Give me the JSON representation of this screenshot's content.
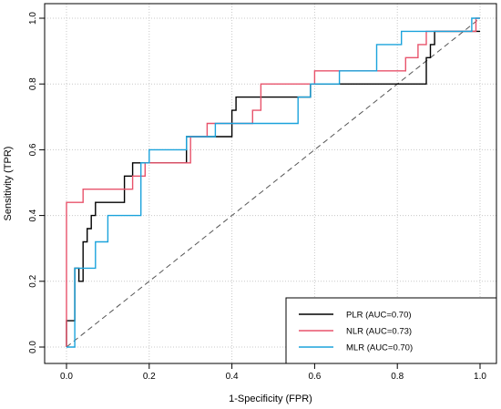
{
  "chart_data": {
    "type": "line",
    "xlabel": "1-Specificity (FPR)",
    "ylabel": "Sensitivity (TPR)",
    "xlim": [
      0,
      1
    ],
    "ylim": [
      0,
      1
    ],
    "x_ticks": [
      "0.0",
      "0.2",
      "0.4",
      "0.6",
      "0.8",
      "1.0"
    ],
    "y_ticks": [
      "0.0",
      "0.2",
      "0.4",
      "0.6",
      "0.8",
      "1.0"
    ],
    "grid": true,
    "diagonal_reference": true,
    "legend_position": "bottom-right",
    "series": [
      {
        "name": "PLR (AUC=0.70)",
        "color": "#000000",
        "x": [
          0,
          0,
          0.02,
          0.02,
          0.03,
          0.03,
          0.04,
          0.04,
          0.05,
          0.05,
          0.06,
          0.06,
          0.07,
          0.07,
          0.14,
          0.14,
          0.16,
          0.16,
          0.18,
          0.18,
          0.29,
          0.29,
          0.4,
          0.4,
          0.41,
          0.41,
          0.57,
          0.57,
          0.59,
          0.59,
          0.87,
          0.87,
          0.88,
          0.88,
          0.89,
          0.89,
          1.0
        ],
        "y": [
          0,
          0.08,
          0.08,
          0.24,
          0.24,
          0.2,
          0.2,
          0.32,
          0.32,
          0.36,
          0.36,
          0.4,
          0.4,
          0.44,
          0.44,
          0.52,
          0.52,
          0.56,
          0.56,
          0.56,
          0.56,
          0.64,
          0.64,
          0.72,
          0.72,
          0.76,
          0.76,
          0.76,
          0.76,
          0.8,
          0.8,
          0.88,
          0.88,
          0.92,
          0.92,
          0.96,
          0.96
        ]
      },
      {
        "name": "NLR (AUC=0.73)",
        "color": "#e8536b",
        "x": [
          0,
          0,
          0.04,
          0.04,
          0.16,
          0.16,
          0.18,
          0.18,
          0.19,
          0.19,
          0.3,
          0.3,
          0.34,
          0.34,
          0.45,
          0.45,
          0.47,
          0.47,
          0.6,
          0.6,
          0.82,
          0.82,
          0.85,
          0.85,
          0.87,
          0.87,
          0.99,
          0.99,
          1.0
        ],
        "y": [
          0,
          0.44,
          0.44,
          0.48,
          0.48,
          0.52,
          0.52,
          0.52,
          0.52,
          0.56,
          0.56,
          0.64,
          0.64,
          0.68,
          0.68,
          0.72,
          0.72,
          0.8,
          0.8,
          0.84,
          0.84,
          0.88,
          0.88,
          0.92,
          0.92,
          0.96,
          0.96,
          1.0,
          1.0
        ]
      },
      {
        "name": "MLR (AUC=0.70)",
        "color": "#1ba3dc",
        "x": [
          0,
          0.02,
          0.02,
          0.03,
          0.03,
          0.07,
          0.07,
          0.1,
          0.1,
          0.18,
          0.18,
          0.2,
          0.2,
          0.29,
          0.29,
          0.36,
          0.36,
          0.48,
          0.48,
          0.56,
          0.56,
          0.59,
          0.59,
          0.66,
          0.66,
          0.75,
          0.75,
          0.81,
          0.81,
          0.87,
          0.87,
          0.98,
          0.98,
          1.0
        ],
        "y": [
          0,
          0,
          0.24,
          0.24,
          0.24,
          0.24,
          0.32,
          0.32,
          0.4,
          0.4,
          0.56,
          0.56,
          0.6,
          0.6,
          0.64,
          0.64,
          0.68,
          0.68,
          0.68,
          0.68,
          0.76,
          0.76,
          0.8,
          0.8,
          0.84,
          0.84,
          0.92,
          0.92,
          0.96,
          0.96,
          0.96,
          0.96,
          1.0,
          1.0
        ]
      }
    ]
  }
}
